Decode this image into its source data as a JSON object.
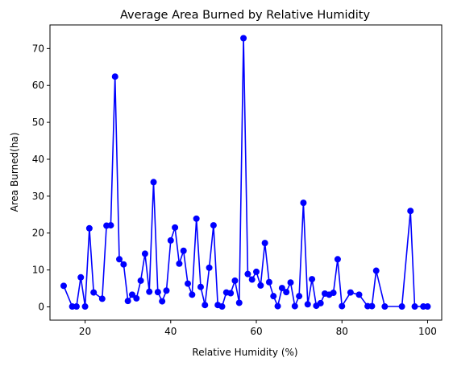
{
  "chart_data": {
    "type": "line",
    "title": "Average Area Burned by Relative Humidity",
    "xlabel": "Relative Humidity (%)",
    "ylabel": "Area Burned(ha)",
    "xlim": [
      11.8,
      103.3
    ],
    "ylim": [
      -3.6,
      76.4
    ],
    "xticks": [
      20,
      40,
      60,
      80,
      100
    ],
    "yticks": [
      0,
      10,
      20,
      30,
      40,
      50,
      60,
      70
    ],
    "grid": false,
    "legend": "none",
    "color": "#0000ff",
    "marker": "circle",
    "series": [
      {
        "x": [
          15,
          17,
          18,
          19,
          20,
          21,
          22,
          24,
          25,
          26,
          27,
          28,
          29,
          30,
          31,
          32,
          33,
          34,
          35,
          36,
          37,
          38,
          39,
          40,
          41,
          42,
          43,
          44,
          45,
          46,
          47,
          48,
          49,
          50,
          51,
          52,
          53,
          54,
          55,
          56,
          57,
          58,
          59,
          60,
          61,
          62,
          63,
          64,
          65,
          66,
          67,
          68,
          69,
          70,
          71,
          72,
          73,
          74,
          75,
          76,
          77,
          78,
          79,
          80,
          82,
          84,
          86,
          87,
          88,
          90,
          94,
          96,
          97,
          99,
          100
        ],
        "y": [
          5.7,
          0.1,
          0.1,
          8.0,
          0.1,
          21.3,
          3.9,
          2.2,
          22.0,
          22.1,
          62.4,
          12.9,
          11.5,
          1.6,
          3.3,
          2.3,
          7.1,
          14.4,
          4.1,
          33.8,
          4.0,
          1.5,
          4.4,
          18.0,
          21.5,
          11.7,
          15.2,
          6.3,
          3.3,
          23.9,
          5.4,
          0.5,
          10.6,
          22.1,
          0.5,
          0.1,
          3.9,
          3.7,
          7.1,
          1.1,
          72.8,
          8.9,
          7.4,
          9.5,
          5.8,
          17.3,
          6.7,
          2.9,
          0.2,
          5.1,
          4.0,
          6.6,
          0.2,
          2.9,
          28.2,
          0.7,
          7.5,
          0.3,
          1.0,
          3.6,
          3.3,
          3.8,
          12.9,
          0.2,
          3.9,
          3.3,
          0.2,
          0.2,
          9.8,
          0.1,
          0.1,
          26.0,
          0.1,
          0.1,
          0.1
        ]
      }
    ]
  }
}
